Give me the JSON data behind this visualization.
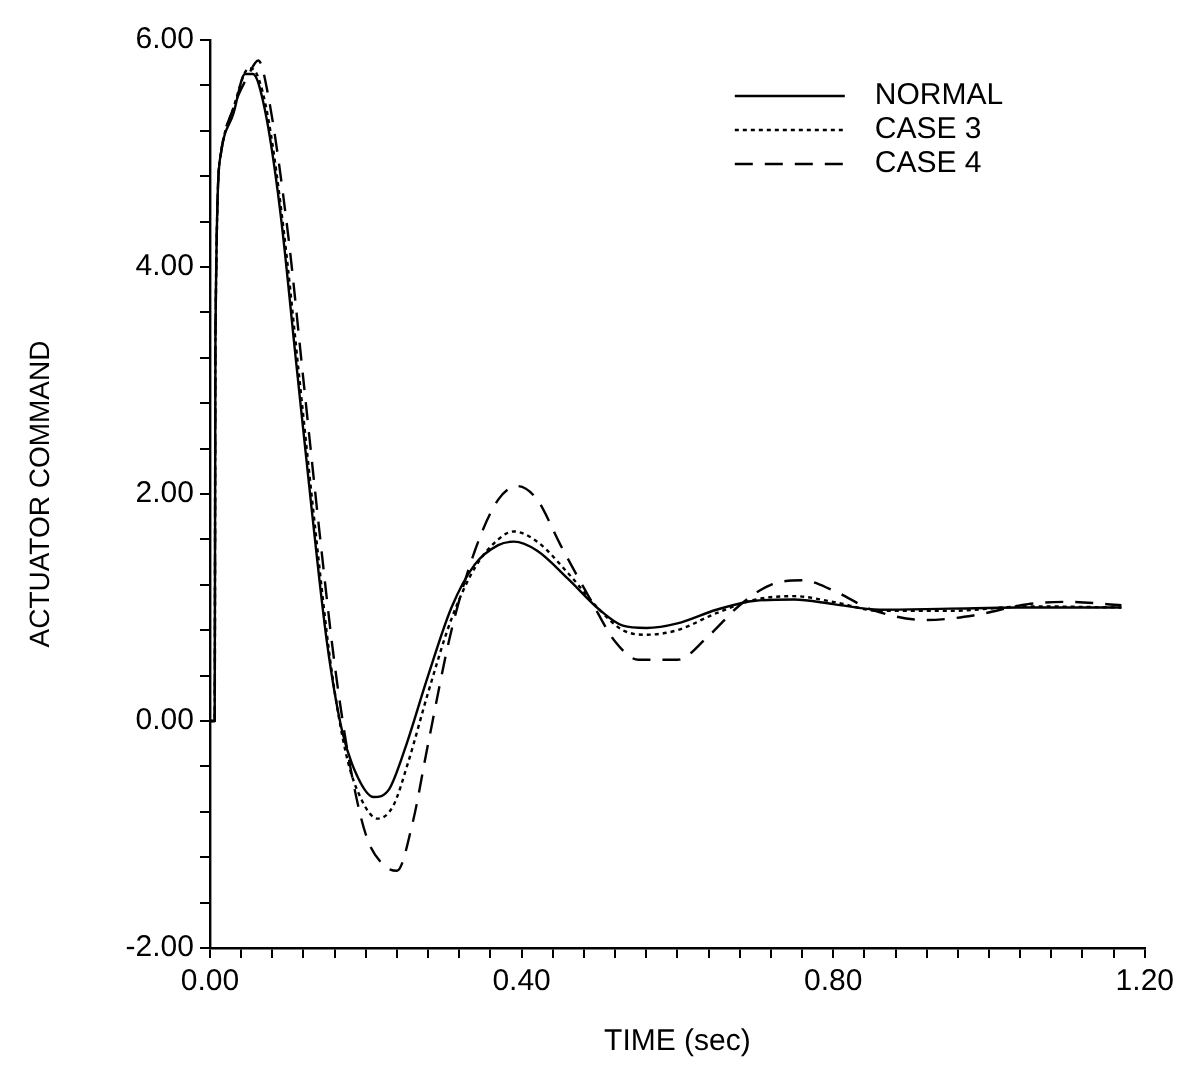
{
  "chart_data": {
    "type": "line",
    "xlabel": "TIME (sec)",
    "ylabel": "ACTUATOR COMMAND",
    "xlim": [
      0,
      1.2
    ],
    "ylim": [
      -2,
      6
    ],
    "xticks": [
      {
        "value": 0,
        "label": "0.00"
      },
      {
        "value": 0.04,
        "label": null
      },
      {
        "value": 0.08,
        "label": null
      },
      {
        "value": 0.12,
        "label": null
      },
      {
        "value": 0.16,
        "label": null
      },
      {
        "value": 0.2,
        "label": null
      },
      {
        "value": 0.24,
        "label": null
      },
      {
        "value": 0.28,
        "label": null
      },
      {
        "value": 0.32,
        "label": null
      },
      {
        "value": 0.36,
        "label": null
      },
      {
        "value": 0.4,
        "label": "0.40"
      },
      {
        "value": 0.44,
        "label": null
      },
      {
        "value": 0.48,
        "label": null
      },
      {
        "value": 0.52,
        "label": null
      },
      {
        "value": 0.56,
        "label": null
      },
      {
        "value": 0.6,
        "label": null
      },
      {
        "value": 0.64,
        "label": null
      },
      {
        "value": 0.68,
        "label": null
      },
      {
        "value": 0.72,
        "label": null
      },
      {
        "value": 0.76,
        "label": null
      },
      {
        "value": 0.8,
        "label": "0.80"
      },
      {
        "value": 0.84,
        "label": null
      },
      {
        "value": 0.88,
        "label": null
      },
      {
        "value": 0.92,
        "label": null
      },
      {
        "value": 0.96,
        "label": null
      },
      {
        "value": 1.0,
        "label": null
      },
      {
        "value": 1.04,
        "label": null
      },
      {
        "value": 1.08,
        "label": null
      },
      {
        "value": 1.12,
        "label": null
      },
      {
        "value": 1.16,
        "label": null
      },
      {
        "value": 1.2,
        "label": "1.20"
      }
    ],
    "yticks": [
      {
        "value": -2,
        "label": "-2.00"
      },
      {
        "value": -1.6,
        "label": null
      },
      {
        "value": -1.2,
        "label": null
      },
      {
        "value": -0.8,
        "label": null
      },
      {
        "value": -0.4,
        "label": null
      },
      {
        "value": 0,
        "label": "0.00"
      },
      {
        "value": 0.4,
        "label": null
      },
      {
        "value": 0.8,
        "label": null
      },
      {
        "value": 1.2,
        "label": null
      },
      {
        "value": 1.6,
        "label": null
      },
      {
        "value": 2,
        "label": "2.00"
      },
      {
        "value": 2.4,
        "label": null
      },
      {
        "value": 2.8,
        "label": null
      },
      {
        "value": 3.2,
        "label": null
      },
      {
        "value": 3.6,
        "label": null
      },
      {
        "value": 4,
        "label": "4.00"
      },
      {
        "value": 4.4,
        "label": null
      },
      {
        "value": 4.8,
        "label": null
      },
      {
        "value": 5.2,
        "label": null
      },
      {
        "value": 5.6,
        "label": null
      },
      {
        "value": 6,
        "label": "6.00"
      }
    ],
    "grid": false,
    "legend": "top right",
    "marker": "none",
    "series": [
      {
        "name": "NORMAL",
        "color": "#000000",
        "line_style": "solid",
        "x": [
          0,
          0.006,
          0.007,
          0.014,
          0.03,
          0.045,
          0.055,
          0.07,
          0.09,
          0.11,
          0.13,
          0.15,
          0.17,
          0.19,
          0.21,
          0.23,
          0.25,
          0.28,
          0.31,
          0.34,
          0.37,
          0.39,
          0.42,
          0.46,
          0.5,
          0.53,
          0.56,
          0.6,
          0.65,
          0.7,
          0.75,
          0.8,
          0.86,
          0.95,
          1.05,
          1.17
        ],
        "values": [
          0,
          0,
          3.4,
          5.0,
          5.35,
          5.7,
          5.7,
          5.4,
          4.5,
          3.2,
          1.9,
          0.7,
          -0.1,
          -0.5,
          -0.67,
          -0.6,
          -0.25,
          0.4,
          1.0,
          1.38,
          1.55,
          1.58,
          1.5,
          1.25,
          0.98,
          0.84,
          0.82,
          0.86,
          0.98,
          1.06,
          1.07,
          1.03,
          0.98,
          0.99,
          1.0,
          1.0
        ]
      },
      {
        "name": "CASE 3",
        "color": "#000000",
        "line_style": "dotted",
        "x": [
          0,
          0.006,
          0.007,
          0.014,
          0.03,
          0.05,
          0.06,
          0.075,
          0.095,
          0.115,
          0.135,
          0.155,
          0.175,
          0.195,
          0.215,
          0.235,
          0.255,
          0.28,
          0.31,
          0.34,
          0.37,
          0.39,
          0.42,
          0.46,
          0.5,
          0.53,
          0.56,
          0.6,
          0.65,
          0.7,
          0.75,
          0.8,
          0.86,
          0.95,
          1.05,
          1.17
        ],
        "values": [
          0,
          0,
          3.4,
          5.0,
          5.4,
          5.75,
          5.7,
          5.3,
          4.3,
          3.0,
          1.7,
          0.5,
          -0.3,
          -0.7,
          -0.86,
          -0.75,
          -0.35,
          0.25,
          0.9,
          1.35,
          1.6,
          1.67,
          1.58,
          1.3,
          0.98,
          0.8,
          0.76,
          0.8,
          0.95,
          1.07,
          1.1,
          1.05,
          0.97,
          0.97,
          1.01,
          1.0
        ]
      },
      {
        "name": "CASE 4",
        "color": "#000000",
        "line_style": "dashed",
        "x": [
          0,
          0.006,
          0.007,
          0.014,
          0.03,
          0.05,
          0.062,
          0.075,
          0.1,
          0.12,
          0.14,
          0.16,
          0.18,
          0.2,
          0.22,
          0.24,
          0.26,
          0.28,
          0.31,
          0.34,
          0.37,
          0.395,
          0.42,
          0.45,
          0.49,
          0.52,
          0.55,
          0.6,
          0.64,
          0.68,
          0.72,
          0.76,
          0.8,
          0.85,
          0.92,
          0.98,
          1.05,
          1.1,
          1.17
        ],
        "values": [
          0,
          0,
          3.4,
          5.0,
          5.4,
          5.7,
          5.82,
          5.5,
          4.3,
          3.0,
          1.7,
          0.5,
          -0.4,
          -1.0,
          -1.25,
          -1.32,
          -0.9,
          -0.2,
          0.8,
          1.5,
          1.95,
          2.07,
          1.95,
          1.55,
          1.05,
          0.7,
          0.54,
          0.54,
          0.75,
          1.02,
          1.2,
          1.24,
          1.15,
          0.98,
          0.89,
          0.93,
          1.03,
          1.05,
          1.02
        ]
      }
    ]
  }
}
